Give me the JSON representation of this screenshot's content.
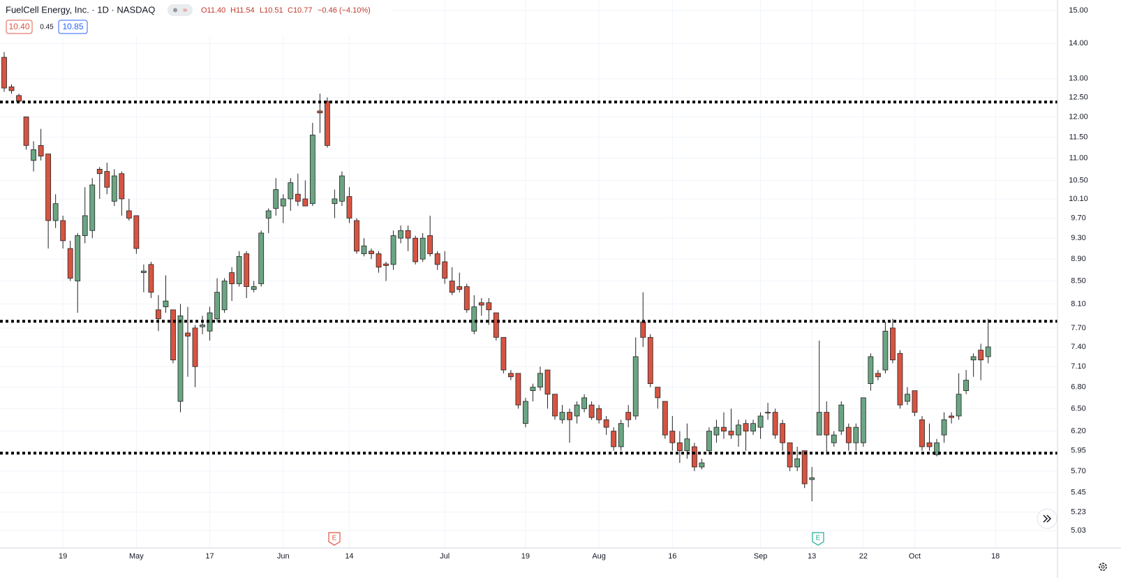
{
  "header": {
    "symbol": "FuelCell Energy, Inc. · 1D · NASDAQ",
    "open": "O11.40",
    "high": "H11.54",
    "low": "L10.51",
    "close": "C10.77",
    "change": "−0.46 (−4.10%)",
    "bid": "10.40",
    "spread": "0.45",
    "ask": "10.85"
  },
  "chart_data": {
    "type": "candlestick",
    "log_scale": true,
    "grid": true,
    "up_color": "#6ba583",
    "down_color": "#d75442",
    "wick_color": "#222222",
    "categories": [
      null,
      null,
      null,
      null,
      null,
      null,
      null,
      null,
      "19",
      null,
      null,
      null,
      null,
      null,
      null,
      null,
      null,
      null,
      "May",
      null,
      null,
      null,
      null,
      null,
      null,
      null,
      null,
      null,
      "17",
      null,
      null,
      null,
      null,
      null,
      null,
      null,
      null,
      null,
      "Jun",
      null,
      null,
      null,
      null,
      null,
      null,
      null,
      null,
      "14",
      null,
      null,
      null,
      null,
      null,
      null,
      null,
      null,
      null,
      null,
      null,
      null,
      "Jul",
      null,
      null,
      null,
      null,
      null,
      null,
      null,
      null,
      null,
      null,
      "19",
      null,
      null,
      null,
      null,
      null,
      null,
      null,
      null,
      null,
      "Aug",
      null,
      null,
      null,
      null,
      null,
      null,
      null,
      null,
      null,
      "16",
      null,
      null,
      null,
      null,
      null,
      null,
      null,
      null,
      null,
      null,
      null,
      "Sep",
      null,
      null,
      null,
      null,
      null,
      null,
      "13",
      null,
      null,
      null,
      null,
      null,
      null,
      "22",
      null,
      null,
      null,
      null,
      null,
      null,
      "Oct",
      null,
      null,
      null,
      null,
      null,
      null,
      null,
      null,
      null,
      null,
      "18"
    ],
    "open": [
      13.6,
      12.78,
      12.55,
      12.0,
      10.95,
      11.3,
      11.1,
      9.65,
      9.65,
      9.1,
      8.5,
      9.35,
      9.45,
      10.75,
      10.7,
      10.05,
      10.65,
      9.85,
      9.75,
      8.65,
      8.8,
      8.0,
      8.05,
      8.0,
      6.6,
      7.62,
      7.7,
      7.72,
      7.65,
      7.85,
      8.0,
      8.65,
      8.45,
      9.0,
      8.35,
      8.45,
      9.7,
      9.9,
      9.95,
      10.1,
      10.2,
      10.1,
      10.0,
      12.15,
      12.4,
      10.0,
      10.05,
      10.15,
      9.65,
      9.0,
      9.05,
      9.0,
      8.81,
      8.8,
      9.3,
      9.45,
      9.3,
      8.9,
      9.35,
      9.0,
      8.85,
      8.5,
      8.4,
      8.4,
      7.65,
      8.12,
      8.12,
      7.95,
      7.55,
      7.0,
      7.0,
      6.3,
      6.75,
      6.8,
      7.05,
      6.7,
      6.35,
      6.45,
      6.4,
      6.5,
      6.55,
      6.5,
      6.35,
      6.2,
      6.0,
      6.45,
      6.4,
      7.8,
      7.55,
      6.8,
      6.6,
      6.2,
      6.05,
      5.95,
      6.0,
      5.75,
      5.95,
      6.15,
      6.25,
      6.2,
      6.15,
      6.3,
      6.2,
      6.25,
      6.45,
      6.45,
      6.3,
      6.05,
      5.75,
      5.95,
      5.6,
      6.15,
      6.45,
      6.05,
      6.2,
      6.25,
      6.05,
      6.05,
      6.85,
      7.0,
      7.05,
      7.7,
      7.3,
      6.6,
      6.75,
      6.35,
      6.05,
      5.9,
      6.15,
      6.4,
      6.4,
      6.75,
      7.2,
      7.35,
      7.25,
      null
    ],
    "high": [
      13.75,
      12.85,
      12.6,
      12.0,
      11.4,
      11.7,
      11.1,
      10.2,
      9.75,
      9.25,
      9.4,
      10.35,
      10.55,
      10.8,
      10.9,
      10.75,
      10.7,
      10.1,
      9.75,
      8.8,
      8.85,
      8.25,
      8.6,
      8.0,
      8.1,
      8.05,
      7.75,
      7.9,
      8.05,
      8.55,
      8.55,
      8.75,
      9.05,
      9.05,
      8.5,
      9.45,
      9.9,
      10.55,
      10.2,
      10.55,
      10.65,
      10.5,
      11.85,
      12.6,
      12.5,
      10.3,
      10.7,
      10.35,
      9.7,
      9.3,
      9.1,
      9.05,
      8.85,
      9.45,
      9.55,
      9.55,
      9.35,
      9.4,
      9.75,
      9.05,
      9.05,
      8.75,
      8.65,
      8.45,
      8.25,
      8.2,
      8.2,
      7.95,
      7.55,
      7.05,
      7.0,
      6.65,
      6.85,
      7.1,
      7.05,
      6.7,
      6.55,
      6.5,
      6.6,
      6.7,
      6.6,
      6.55,
      6.4,
      6.25,
      6.35,
      6.55,
      7.55,
      8.3,
      7.6,
      6.8,
      6.6,
      6.4,
      6.2,
      6.3,
      6.05,
      5.85,
      6.25,
      6.35,
      6.45,
      6.5,
      6.35,
      6.35,
      6.35,
      6.45,
      6.58,
      6.5,
      6.35,
      6.05,
      6.0,
      5.95,
      5.75,
      7.5,
      6.6,
      6.2,
      6.6,
      6.3,
      6.3,
      6.65,
      7.3,
      7.05,
      7.8,
      7.85,
      7.35,
      6.8,
      6.75,
      6.4,
      6.3,
      6.1,
      6.45,
      6.45,
      7.0,
      7.05,
      7.3,
      7.45,
      7.85,
      null
    ],
    "low": [
      12.65,
      12.6,
      12.35,
      11.2,
      10.7,
      10.95,
      9.1,
      9.5,
      9.1,
      8.5,
      7.95,
      9.2,
      9.3,
      10.1,
      10.2,
      9.95,
      9.75,
      9.65,
      9.0,
      8.3,
      8.2,
      7.65,
      7.95,
      7.15,
      6.45,
      6.95,
      6.8,
      7.6,
      7.5,
      7.8,
      7.95,
      8.15,
      8.4,
      8.2,
      8.3,
      8.4,
      9.4,
      9.75,
      9.6,
      9.85,
      9.95,
      9.95,
      9.95,
      11.6,
      11.25,
      9.7,
      9.95,
      9.6,
      9.0,
      8.95,
      8.9,
      8.65,
      8.5,
      8.7,
      9.2,
      9.05,
      8.8,
      8.85,
      8.95,
      8.7,
      8.45,
      8.25,
      8.3,
      7.95,
      7.6,
      7.9,
      7.75,
      7.5,
      7.0,
      6.9,
      6.5,
      6.25,
      6.6,
      6.75,
      6.5,
      6.35,
      6.3,
      6.05,
      6.3,
      6.45,
      6.35,
      6.3,
      6.15,
      5.95,
      5.95,
      6.25,
      6.35,
      7.4,
      6.8,
      6.5,
      6.1,
      5.95,
      5.8,
      5.85,
      5.7,
      5.72,
      5.9,
      6.05,
      6.1,
      6.1,
      6.0,
      5.95,
      6.15,
      6.1,
      6.35,
      6.1,
      5.95,
      5.7,
      5.7,
      5.5,
      5.35,
      6.15,
      5.9,
      6.0,
      6.15,
      5.95,
      5.95,
      6.0,
      6.75,
      6.9,
      7.0,
      7.15,
      6.5,
      6.55,
      6.4,
      5.95,
      5.95,
      5.88,
      6.05,
      6.3,
      6.35,
      6.7,
      6.95,
      6.9,
      7.15,
      null
    ],
    "close": [
      12.75,
      12.68,
      12.4,
      11.3,
      11.2,
      11.05,
      9.65,
      10.0,
      9.25,
      8.55,
      9.35,
      9.75,
      10.4,
      10.65,
      10.35,
      10.6,
      10.1,
      9.7,
      9.1,
      8.68,
      8.3,
      7.85,
      8.15,
      7.2,
      7.9,
      7.57,
      7.1,
      7.75,
      7.95,
      8.3,
      8.5,
      8.45,
      8.95,
      8.4,
      8.4,
      9.4,
      9.85,
      10.3,
      10.1,
      10.45,
      10.05,
      9.95,
      11.55,
      12.1,
      11.3,
      10.1,
      10.6,
      9.7,
      9.05,
      9.15,
      9.0,
      8.75,
      8.78,
      9.35,
      9.45,
      9.3,
      8.85,
      9.3,
      9.0,
      8.8,
      8.55,
      8.3,
      8.35,
      8.0,
      8.05,
      8.08,
      8.0,
      7.55,
      7.05,
      6.95,
      6.55,
      6.6,
      6.8,
      7.0,
      6.7,
      6.4,
      6.45,
      6.35,
      6.55,
      6.65,
      6.38,
      6.35,
      6.25,
      6.0,
      6.3,
      6.35,
      7.25,
      7.55,
      6.85,
      6.65,
      6.15,
      6.05,
      5.95,
      6.1,
      5.75,
      5.8,
      6.2,
      6.25,
      6.2,
      6.15,
      6.28,
      6.2,
      6.3,
      6.4,
      6.44,
      6.15,
      6.05,
      5.75,
      5.85,
      5.55,
      5.62,
      6.45,
      6.15,
      6.15,
      6.55,
      6.05,
      6.25,
      6.65,
      7.25,
      6.95,
      7.65,
      7.2,
      6.55,
      6.7,
      6.45,
      6.0,
      6.0,
      6.05,
      6.35,
      6.38,
      6.7,
      6.9,
      7.25,
      7.2,
      7.4,
      null
    ],
    "ylim": [
      4.85,
      15.34
    ],
    "yticks": [
      {
        "value": 15,
        "label": "15.00"
      },
      {
        "value": 14,
        "label": "14.00"
      },
      {
        "value": 13,
        "label": "13.00"
      },
      {
        "value": 12.5,
        "label": "12.50"
      },
      {
        "value": 12,
        "label": "12.00"
      },
      {
        "value": 11.5,
        "label": "11.50"
      },
      {
        "value": 11,
        "label": "11.00"
      },
      {
        "value": 10.5,
        "label": "10.50"
      },
      {
        "value": 10.1,
        "label": "10.10"
      },
      {
        "value": 9.7,
        "label": "9.70"
      },
      {
        "value": 9.3,
        "label": "9.30"
      },
      {
        "value": 8.9,
        "label": "8.90"
      },
      {
        "value": 8.5,
        "label": "8.50"
      },
      {
        "value": 8.1,
        "label": "8.10"
      },
      {
        "value": 7.7,
        "label": "7.70"
      },
      {
        "value": 7.4,
        "label": "7.40"
      },
      {
        "value": 7.1,
        "label": "7.10"
      },
      {
        "value": 6.8,
        "label": "6.80"
      },
      {
        "value": 6.5,
        "label": "6.50"
      },
      {
        "value": 6.2,
        "label": "6.20"
      },
      {
        "value": 5.95,
        "label": "5.95"
      },
      {
        "value": 5.7,
        "label": "5.70"
      },
      {
        "value": 5.45,
        "label": "5.45"
      },
      {
        "value": 5.23,
        "label": "5.23"
      },
      {
        "value": 5.03,
        "label": "5.03"
      }
    ],
    "horizontal_lines": {
      "values": [
        12.38,
        7.81,
        5.92
      ],
      "color": "#000000"
    },
    "events": [
      "E",
      "E"
    ]
  }
}
